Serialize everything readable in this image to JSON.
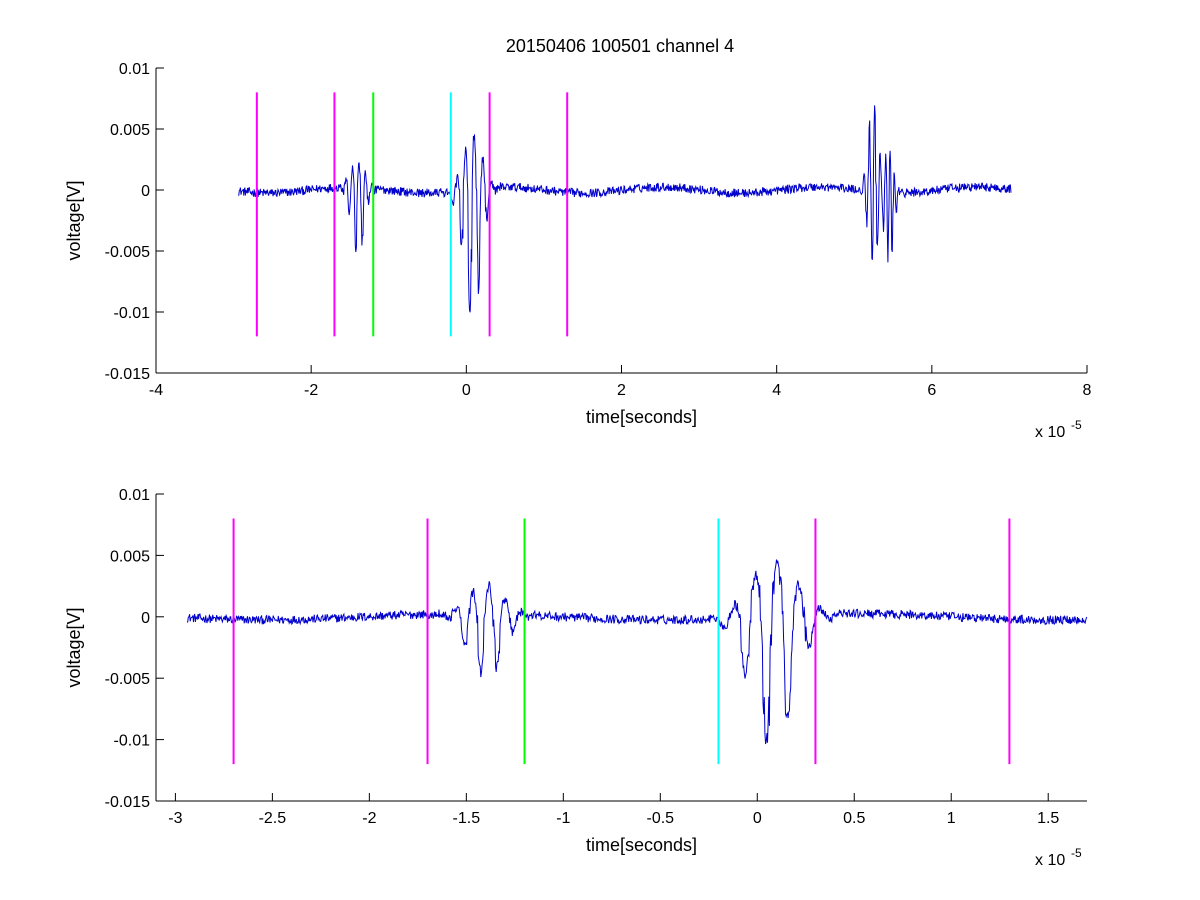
{
  "figure": {
    "title": "20150406 100501 channel 4"
  },
  "chart_data": [
    {
      "type": "line",
      "title": "20150406 100501 channel 4",
      "xlabel": "time[seconds]",
      "ylabel": "voltage[V]",
      "x_multiplier_label": "x 10",
      "x_multiplier_exponent": "-5",
      "xlim": [
        -4e-05,
        8e-05
      ],
      "ylim": [
        -0.015,
        0.01
      ],
      "x_ticks": [
        -4e-05,
        -2e-05,
        0,
        2e-05,
        4e-05,
        6e-05,
        8e-05
      ],
      "x_tick_labels": [
        "-4",
        "-2",
        "0",
        "2",
        "4",
        "6",
        "8"
      ],
      "y_ticks": [
        0.01,
        0.005,
        0,
        -0.005,
        -0.01,
        -0.015
      ],
      "y_tick_labels": [
        "0.01",
        "0.005",
        "0",
        "-0.005",
        "-0.01",
        "-0.015"
      ],
      "grid": false,
      "signal_color": "#0000cc",
      "signal": {
        "x_range": [
          -2.94e-05,
          7.02e-05
        ],
        "baseline_noise": 0.0004,
        "bursts": [
          {
            "x": -1.4e-05,
            "min": -0.0056,
            "max": 0.0024,
            "width": 1.2e-06
          },
          {
            "x": 8e-07,
            "min": -0.0108,
            "max": 0.0048,
            "width": 1.6e-06
          },
          {
            "x": 5.25e-05,
            "min": -0.0057,
            "max": 0.0072,
            "width": 1e-06
          },
          {
            "x": 5.45e-05,
            "min": -0.006,
            "max": 0.0035,
            "width": 8e-07
          }
        ]
      },
      "markers": [
        {
          "x": -2.7e-05,
          "color": "#ff00ff",
          "y0": -0.012,
          "y1": 0.008
        },
        {
          "x": -1.7e-05,
          "color": "#ff00ff",
          "y0": -0.012,
          "y1": 0.008
        },
        {
          "x": -1.2e-05,
          "color": "#00ff00",
          "y0": -0.012,
          "y1": 0.008
        },
        {
          "x": -2e-06,
          "color": "#00ffff",
          "y0": -0.012,
          "y1": 0.008
        },
        {
          "x": 3e-06,
          "color": "#ff00ff",
          "y0": -0.012,
          "y1": 0.008
        },
        {
          "x": 1.3e-05,
          "color": "#ff00ff",
          "y0": -0.012,
          "y1": 0.008
        }
      ]
    },
    {
      "type": "line",
      "title": "",
      "xlabel": "time[seconds]",
      "ylabel": "voltage[V]",
      "x_multiplier_label": "x 10",
      "x_multiplier_exponent": "-5",
      "xlim": [
        -3.1e-05,
        1.7e-05
      ],
      "ylim": [
        -0.015,
        0.01
      ],
      "x_ticks": [
        -3e-05,
        -2.5e-05,
        -2e-05,
        -1.5e-05,
        -1e-05,
        -5e-06,
        0,
        5e-06,
        1e-05,
        1.5e-05
      ],
      "x_tick_labels": [
        "-3",
        "-2.5",
        "-2",
        "-1.5",
        "-1",
        "-0.5",
        "0",
        "0.5",
        "1",
        "1.5"
      ],
      "y_ticks": [
        0.01,
        0.005,
        0,
        -0.005,
        -0.01,
        -0.015
      ],
      "y_tick_labels": [
        "0.01",
        "0.005",
        "0",
        "-0.005",
        "-0.01",
        "-0.015"
      ],
      "grid": false,
      "signal_color": "#0000cc",
      "signal": {
        "x_range": [
          -2.94e-05,
          1.7e-05
        ],
        "baseline_noise": 0.0004,
        "bursts": [
          {
            "x": -1.4e-05,
            "min": -0.0056,
            "max": 0.0024,
            "width": 1.2e-06
          },
          {
            "x": 8e-07,
            "min": -0.0108,
            "max": 0.0048,
            "width": 1.6e-06
          }
        ]
      },
      "markers": [
        {
          "x": -2.7e-05,
          "color": "#ff00ff",
          "y0": -0.012,
          "y1": 0.008
        },
        {
          "x": -1.7e-05,
          "color": "#ff00ff",
          "y0": -0.012,
          "y1": 0.008
        },
        {
          "x": -1.2e-05,
          "color": "#00ff00",
          "y0": -0.012,
          "y1": 0.008
        },
        {
          "x": -2e-06,
          "color": "#00ffff",
          "y0": -0.012,
          "y1": 0.008
        },
        {
          "x": 3e-06,
          "color": "#ff00ff",
          "y0": -0.012,
          "y1": 0.008
        },
        {
          "x": 1.3e-05,
          "color": "#ff00ff",
          "y0": -0.012,
          "y1": 0.008
        }
      ]
    }
  ]
}
